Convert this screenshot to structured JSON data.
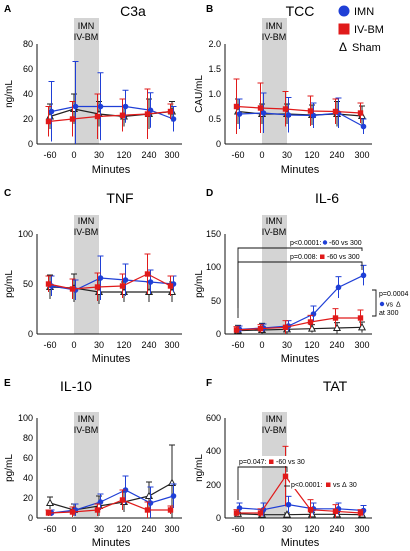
{
  "legend": {
    "position": "top-right",
    "items": [
      {
        "label": "IMN",
        "marker": "circle",
        "color": "#1f3fd6"
      },
      {
        "label": "IV-BM",
        "marker": "square",
        "color": "#e01a1a"
      },
      {
        "label": "Sham",
        "marker": "triangle",
        "color": "#222222",
        "prefix": "Δ"
      }
    ]
  },
  "colors": {
    "imn": "#1f3fd6",
    "ivbm": "#e01a1a",
    "sham": "#222222",
    "shade": "#d4d4d4"
  },
  "chart_data": [
    {
      "letter": "A",
      "title": "C3a",
      "ylabel": "ng/mL",
      "xlabel": "Minutes",
      "type": "line",
      "ylim": [
        0,
        80
      ],
      "yticks": [
        0,
        20,
        40,
        60,
        80
      ],
      "x": [
        "-60",
        "0",
        "30",
        "120",
        "240",
        "300"
      ],
      "shade_label_1": "IMN",
      "shade_label_2": "IV-BM",
      "series": [
        {
          "name": "IMN",
          "values": [
            26,
            30,
            30,
            30,
            27,
            20
          ],
          "err": [
            24,
            36,
            27,
            13,
            14,
            10
          ]
        },
        {
          "name": "IV-BM",
          "values": [
            18,
            20,
            22,
            23,
            24,
            26
          ],
          "err": [
            12,
            14,
            18,
            13,
            20,
            6
          ]
        },
        {
          "name": "Sham",
          "values": [
            22,
            28,
            24,
            22,
            24,
            26
          ],
          "err": [
            10,
            12,
            10,
            8,
            12,
            8
          ]
        }
      ]
    },
    {
      "letter": "B",
      "title": "TCC",
      "ylabel": "CAU/mL",
      "xlabel": "Minutes",
      "type": "line",
      "ylim": [
        0,
        2.0
      ],
      "yticks": [
        0,
        0.5,
        1.0,
        1.5,
        2.0
      ],
      "ytick_labels": [
        "0",
        "0.5",
        "1.0",
        "1.5",
        "2.0"
      ],
      "x": [
        "-60",
        "0",
        "30",
        "120",
        "240",
        "300"
      ],
      "shade_label_1": "IMN",
      "shade_label_2": "IV-BM",
      "series": [
        {
          "name": "IMN",
          "values": [
            0.6,
            0.62,
            0.58,
            0.57,
            0.62,
            0.35
          ],
          "err": [
            0.3,
            0.4,
            0.35,
            0.25,
            0.3,
            0.15
          ]
        },
        {
          "name": "IV-BM",
          "values": [
            0.75,
            0.72,
            0.7,
            0.66,
            0.65,
            0.62
          ],
          "err": [
            0.55,
            0.5,
            0.35,
            0.3,
            0.25,
            0.2
          ]
        },
        {
          "name": "Sham",
          "values": [
            0.65,
            0.6,
            0.6,
            0.58,
            0.6,
            0.56
          ],
          "err": [
            0.25,
            0.2,
            0.2,
            0.2,
            0.25,
            0.2
          ]
        }
      ]
    },
    {
      "letter": "C",
      "title": "TNF",
      "ylabel": "pg/mL",
      "xlabel": "Minutes",
      "type": "line",
      "ylim": [
        0,
        100
      ],
      "yticks": [
        0,
        50,
        100
      ],
      "x": [
        "-60",
        "0",
        "30",
        "120",
        "240",
        "300"
      ],
      "shade_label_1": "IMN",
      "shade_label_2": "IV-BM",
      "series": [
        {
          "name": "IMN",
          "values": [
            48,
            44,
            56,
            54,
            52,
            50
          ],
          "err": [
            10,
            10,
            22,
            16,
            12,
            8
          ]
        },
        {
          "name": "IV-BM",
          "values": [
            50,
            45,
            47,
            48,
            60,
            48
          ],
          "err": [
            8,
            10,
            14,
            12,
            20,
            10
          ]
        },
        {
          "name": "Sham",
          "values": [
            47,
            46,
            42,
            42,
            42,
            42
          ],
          "err": [
            12,
            14,
            12,
            10,
            10,
            10
          ]
        }
      ]
    },
    {
      "letter": "D",
      "title": "IL-6",
      "ylabel": "pg/mL",
      "xlabel": "Minutes",
      "type": "line",
      "ylim": [
        0,
        150
      ],
      "yticks": [
        0,
        50,
        100,
        150
      ],
      "x": [
        "-60",
        "0",
        "30",
        "120",
        "240",
        "300"
      ],
      "shade_label_1": "IMN",
      "shade_label_2": "IV-BM",
      "series": [
        {
          "name": "IMN",
          "values": [
            7,
            9,
            12,
            30,
            70,
            88
          ],
          "err": [
            5,
            6,
            8,
            12,
            16,
            15
          ]
        },
        {
          "name": "IV-BM",
          "values": [
            6,
            8,
            10,
            18,
            24,
            24
          ],
          "err": [
            5,
            6,
            10,
            10,
            14,
            12
          ]
        },
        {
          "name": "Sham",
          "values": [
            5,
            6,
            7,
            8,
            9,
            10
          ],
          "err": [
            8,
            10,
            6,
            6,
            8,
            8
          ]
        }
      ],
      "annotations": {
        "a1_prefix": "p<0.0001:",
        "a1_suffix": "-60 vs 300",
        "a2_prefix": "p=0.008:",
        "a2_suffix": "-60 vs 300",
        "a3_p": "p=0.0004",
        "a3_vs": "vs",
        "a3_tri": "Δ",
        "a3_at": "at 300"
      }
    },
    {
      "letter": "E",
      "title": "IL-10",
      "ylabel": "pg/mL",
      "xlabel": "Minutes",
      "type": "line",
      "ylim": [
        0,
        100
      ],
      "yticks": [
        0,
        20,
        40,
        60,
        80,
        100
      ],
      "x": [
        "-60",
        "0",
        "30",
        "120",
        "240",
        "300"
      ],
      "shade_label_1": "IMN",
      "shade_label_2": "IV-BM",
      "series": [
        {
          "name": "IMN",
          "values": [
            5,
            8,
            16,
            28,
            15,
            22
          ],
          "err": [
            3,
            6,
            8,
            14,
            16,
            12
          ]
        },
        {
          "name": "IV-BM",
          "values": [
            5,
            6,
            8,
            18,
            8,
            8
          ],
          "err": [
            3,
            5,
            6,
            10,
            8,
            4
          ]
        },
        {
          "name": "Sham",
          "values": [
            15,
            8,
            12,
            16,
            22,
            35
          ],
          "err": [
            6,
            6,
            10,
            10,
            14,
            38
          ]
        }
      ]
    },
    {
      "letter": "F",
      "title": "TAT",
      "ylabel": "ng/mL",
      "xlabel": "Minutes",
      "type": "line",
      "ylim": [
        0,
        600
      ],
      "yticks": [
        0,
        200,
        400,
        600
      ],
      "x": [
        "-60",
        "0",
        "30",
        "120",
        "240",
        "300"
      ],
      "shade_label_1": "IMN",
      "shade_label_2": "IV-BM",
      "series": [
        {
          "name": "IMN",
          "values": [
            60,
            50,
            80,
            55,
            55,
            45
          ],
          "err": [
            30,
            40,
            50,
            35,
            35,
            30
          ]
        },
        {
          "name": "IV-BM",
          "values": [
            30,
            30,
            250,
            50,
            40,
            30
          ],
          "err": [
            20,
            25,
            180,
            60,
            40,
            20
          ]
        },
        {
          "name": "Sham",
          "values": [
            25,
            20,
            20,
            22,
            22,
            20
          ],
          "err": [
            10,
            10,
            10,
            10,
            10,
            10
          ]
        }
      ],
      "annotations": {
        "b1_prefix": "p=0.047:",
        "b1_suffix": "-60 vs 30",
        "b2_prefix": "p<0.0001:",
        "b2_mid": "vs",
        "b2_tri": "Δ",
        "b2_suffix": "30"
      }
    }
  ]
}
